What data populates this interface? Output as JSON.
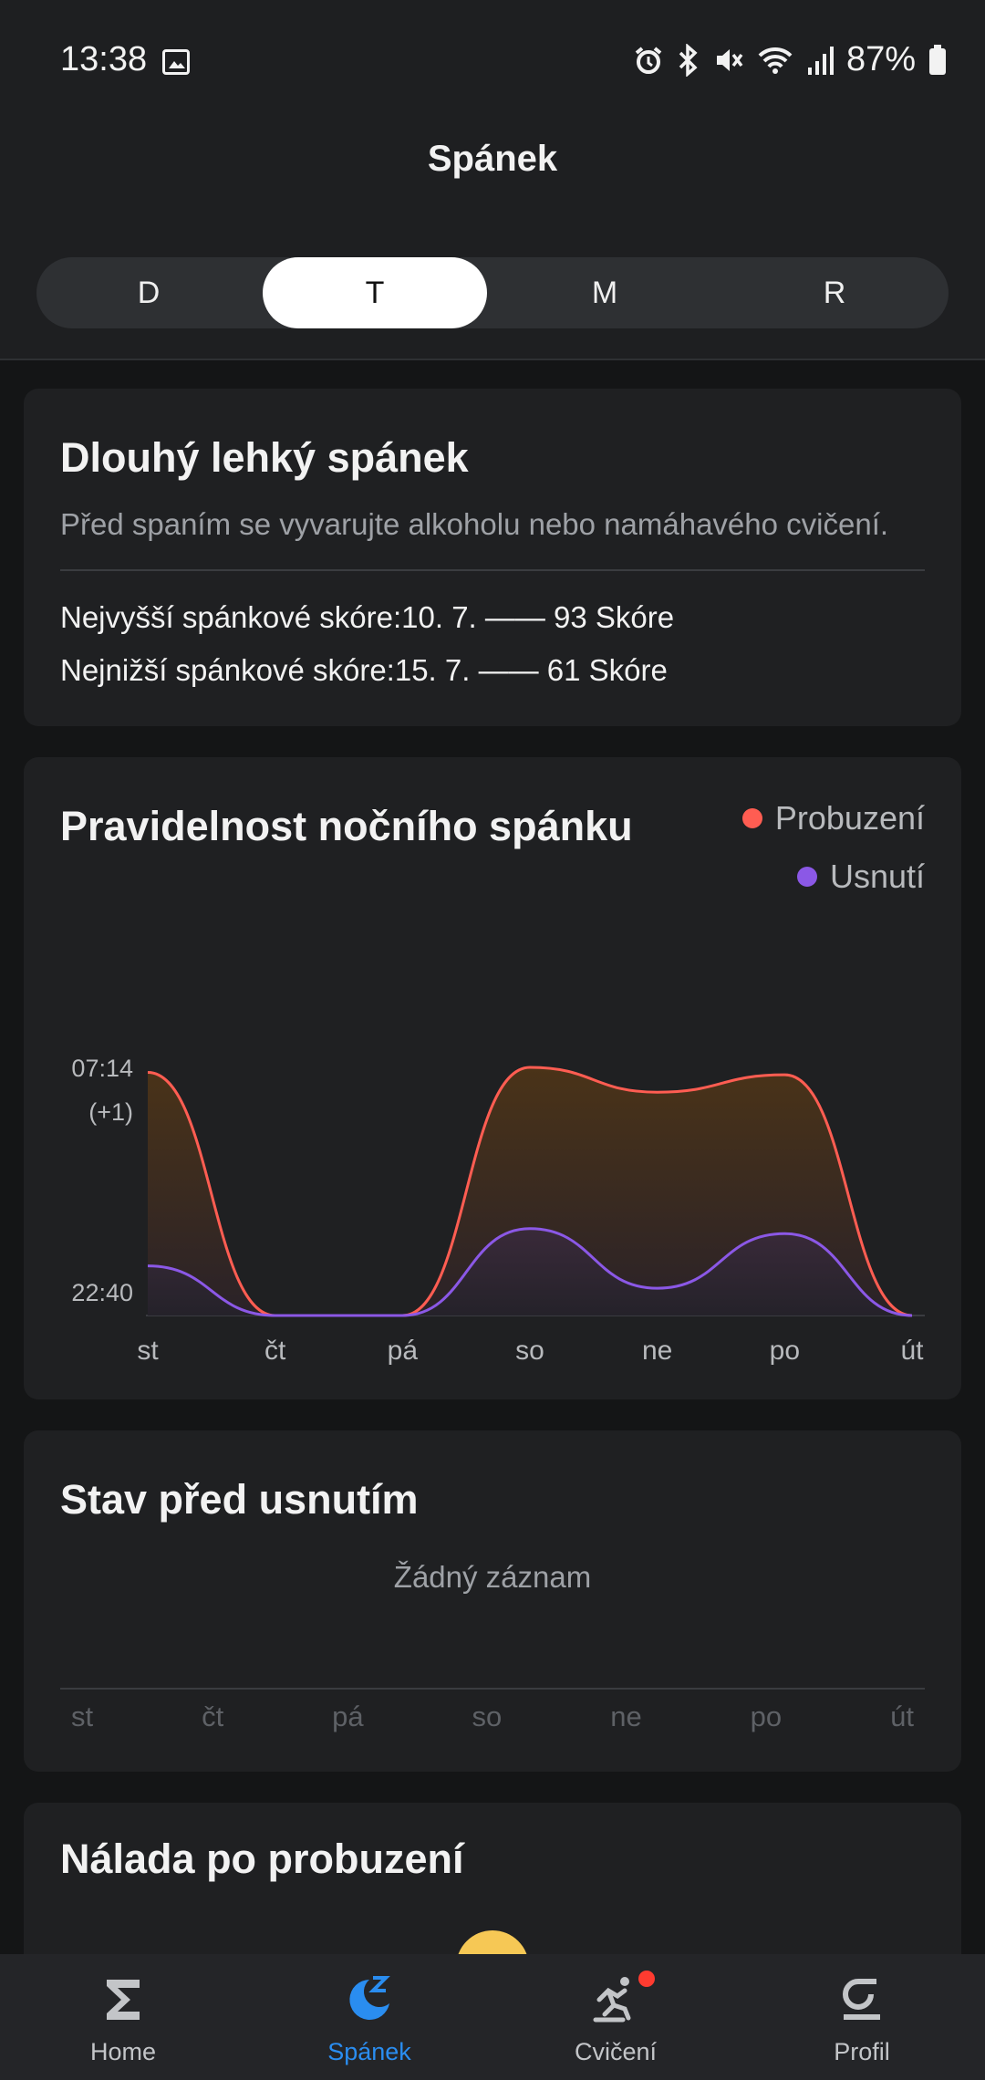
{
  "status_bar": {
    "time": "13:38",
    "battery": "87%"
  },
  "header": {
    "title": "Spánek"
  },
  "period_tabs": {
    "items": [
      "D",
      "T",
      "M",
      "R"
    ],
    "selected": "T"
  },
  "summary_card": {
    "title": "Dlouhý lehký spánek",
    "advice": "Před spaním se vyvarujte alkoholu nebo namáhavého cvičení.",
    "best": "Nejvyšší spánkové skóre:10. 7. —— 93 Skóre",
    "worst": "Nejnižší spánkové skóre:15. 7. —— 61 Skóre"
  },
  "regularity_card": {
    "title": "Pravidelnost nočního spánku",
    "legend": [
      {
        "label": "Probuzení",
        "color": "#ff5d52"
      },
      {
        "label": "Usnutí",
        "color": "#8b58e6"
      }
    ]
  },
  "chart_data": {
    "type": "area",
    "categories": [
      "st",
      "čt",
      "pá",
      "so",
      "ne",
      "po",
      "út"
    ],
    "y_tick_top": "07:14",
    "y_tick_top_note": "(+1)",
    "y_tick_bottom": "22:40",
    "ylim": [
      0,
      1
    ],
    "series": [
      {
        "name": "Probuzení",
        "color": "#ff5d52",
        "values": [
          0.98,
          0,
          0,
          1.0,
          0.9,
          0.97,
          0
        ]
      },
      {
        "name": "Usnutí",
        "color": "#8b58e6",
        "values": [
          0.2,
          0,
          0,
          0.35,
          0.11,
          0.33,
          0
        ]
      }
    ]
  },
  "presleep_card": {
    "title": "Stav před usnutím",
    "empty_text": "Žádný záznam",
    "days": [
      "st",
      "čt",
      "pá",
      "so",
      "ne",
      "po",
      "út"
    ]
  },
  "mood_card": {
    "title": "Nálada po probuzení"
  },
  "bottom_nav": [
    {
      "label": "Home",
      "icon": "sigma-icon"
    },
    {
      "label": "Spánek",
      "icon": "moon-z-icon",
      "active": true
    },
    {
      "label": "Cvičení",
      "icon": "runner-icon"
    },
    {
      "label": "Profil",
      "icon": "profile-g-icon"
    }
  ]
}
